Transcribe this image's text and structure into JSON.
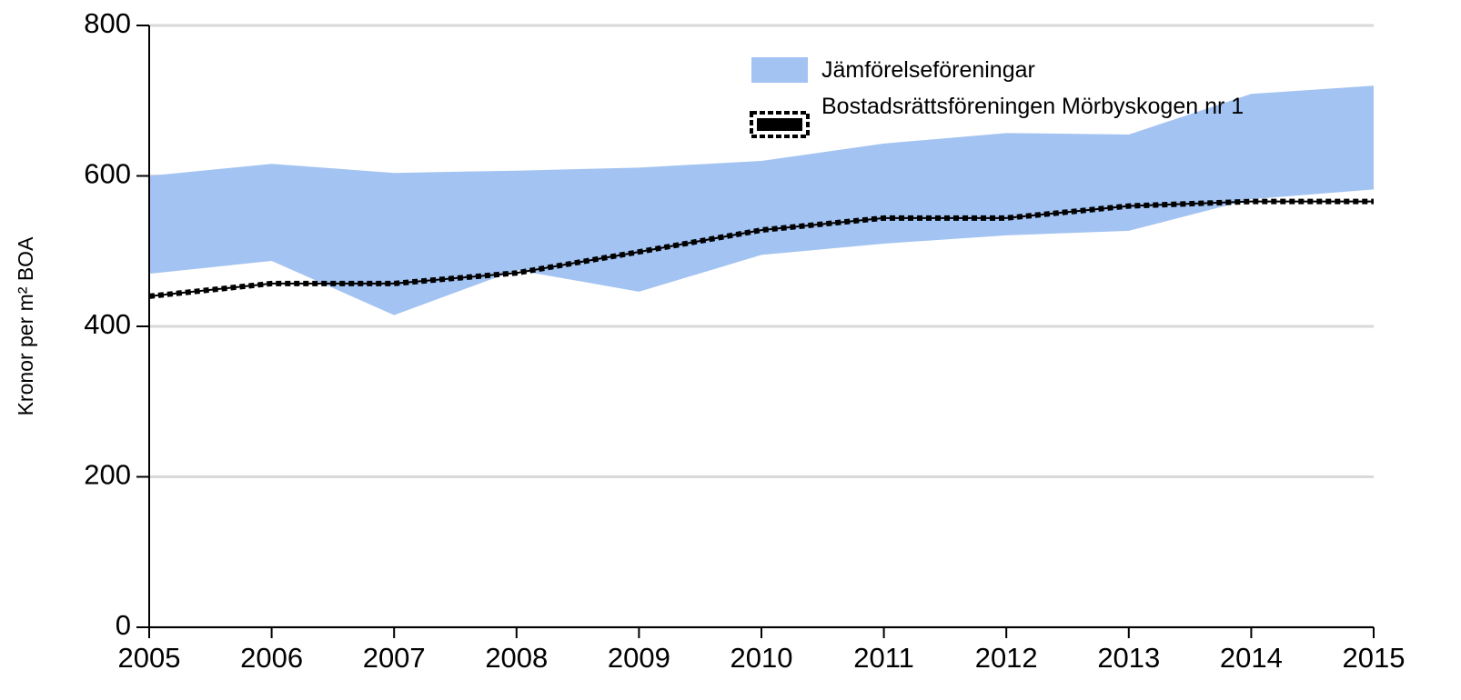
{
  "chart_data": {
    "type": "line",
    "ylabel": "Kronor per m² BOA",
    "x": [
      2005,
      2006,
      2007,
      2008,
      2009,
      2010,
      2011,
      2012,
      2013,
      2014,
      2015
    ],
    "xlim": [
      2005,
      2015
    ],
    "xticks": [
      2005,
      2006,
      2007,
      2008,
      2009,
      2010,
      2011,
      2012,
      2013,
      2014,
      2015
    ],
    "ylim": [
      0,
      800
    ],
    "yticks": [
      0,
      200,
      400,
      600,
      800
    ],
    "grid": true,
    "legend": "top-right",
    "series": [
      {
        "name": "Jämförelseföreningar",
        "color": "#a3c3f2",
        "lower": [
          470,
          487,
          415,
          475,
          446,
          495,
          510,
          521,
          527,
          569,
          582
        ],
        "upper": [
          600,
          616,
          604,
          607,
          611,
          620,
          643,
          657,
          655,
          709,
          720
        ]
      },
      {
        "name": "Bostadsrättsföreningen Mörbyskogen nr 1",
        "color": "#000000",
        "values": [
          440,
          457,
          457,
          471,
          499,
          528,
          544,
          544,
          560,
          566,
          566
        ]
      }
    ]
  }
}
